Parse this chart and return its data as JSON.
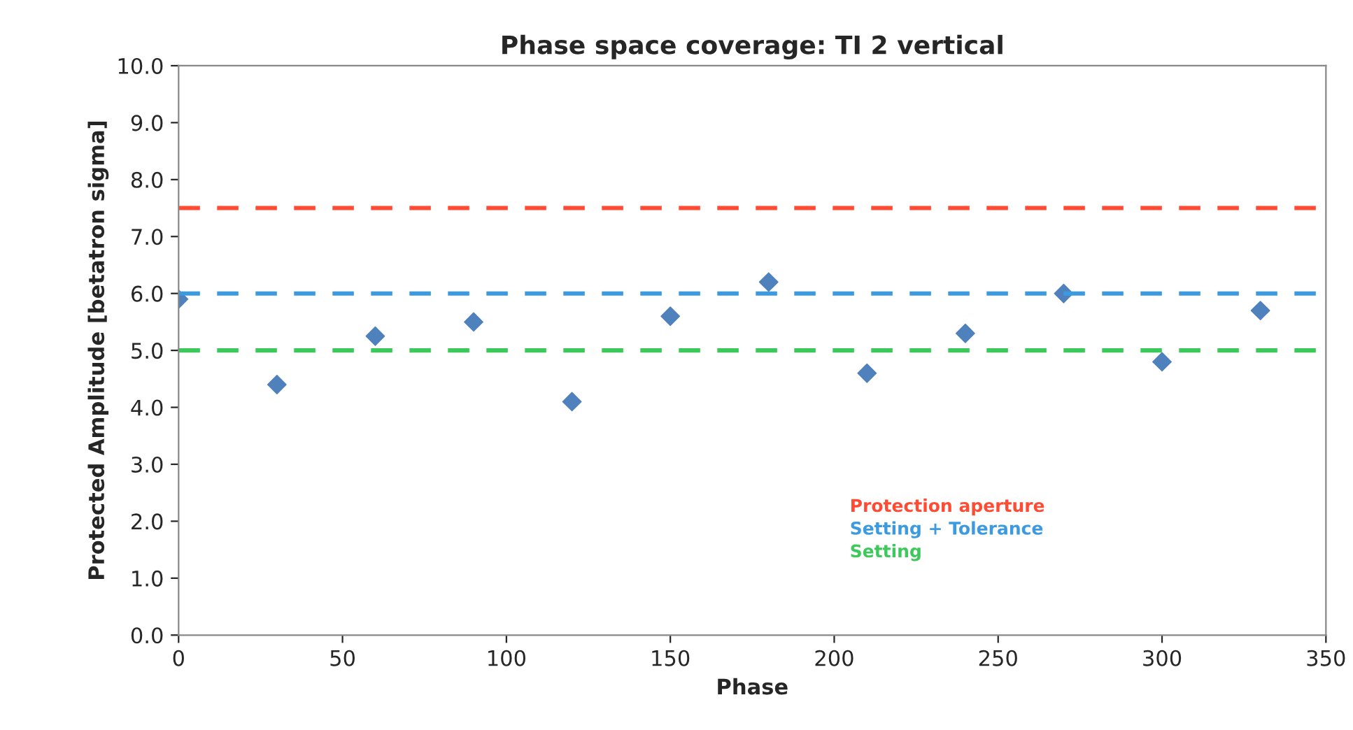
{
  "chart_data": {
    "type": "scatter",
    "title": "Phase space coverage: TI 2 vertical",
    "xlabel": "Phase",
    "ylabel": "Protected Amplitude [betatron sigma]",
    "x": [
      0,
      30,
      60,
      90,
      120,
      150,
      180,
      210,
      240,
      270,
      300,
      330
    ],
    "series": [
      {
        "color": "#4f81bd",
        "values": [
          5.9,
          4.4,
          5.25,
          5.5,
          4.1,
          5.6,
          6.2,
          4.6,
          5.3,
          6.0,
          4.8,
          5.7
        ]
      }
    ],
    "marker": "diamond",
    "grid": false,
    "legend": false,
    "xlim": [
      0,
      350
    ],
    "xticks": [
      0,
      50,
      100,
      150,
      200,
      250,
      300,
      350
    ],
    "ylim": [
      0,
      10
    ],
    "yticks": [
      {
        "value": 0,
        "label": "0.0"
      },
      {
        "value": 1,
        "label": "1.0"
      },
      {
        "value": 2,
        "label": "2.0"
      },
      {
        "value": 3,
        "label": "3.0"
      },
      {
        "value": 4,
        "label": "4.0"
      },
      {
        "value": 5,
        "label": "5.0"
      },
      {
        "value": 6,
        "label": "6.0"
      },
      {
        "value": 7,
        "label": "7.0"
      },
      {
        "value": 8,
        "label": "8.0"
      },
      {
        "value": 9,
        "label": "9.0"
      },
      {
        "value": 10,
        "label": "10.0"
      }
    ],
    "ref_lines": [
      {
        "axis": "y",
        "value": 7.5,
        "label": "Protection aperture",
        "color": "#ff4b33",
        "line_style": "dashed"
      },
      {
        "axis": "y",
        "value": 6.0,
        "label": "Setting + Tolerance",
        "color": "#3c9be0",
        "line_style": "dashed"
      },
      {
        "axis": "y",
        "value": 5.0,
        "label": "Setting",
        "color": "#3cc85a",
        "line_style": "dashed"
      }
    ]
  }
}
